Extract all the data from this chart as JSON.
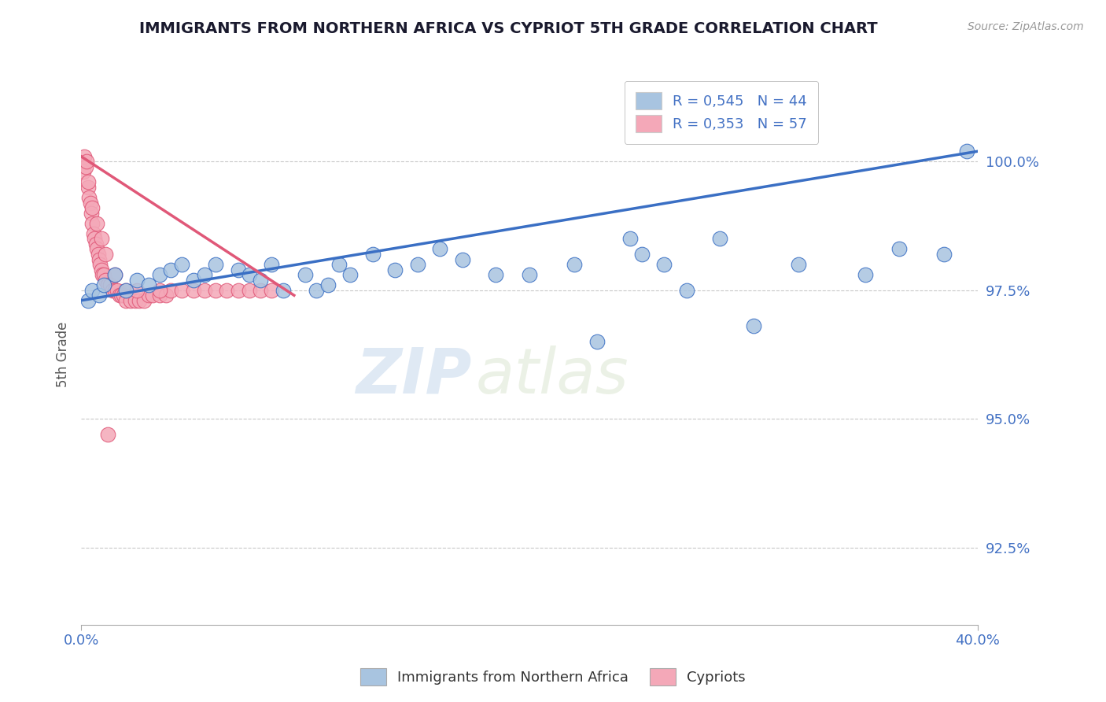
{
  "title": "IMMIGRANTS FROM NORTHERN AFRICA VS CYPRIOT 5TH GRADE CORRELATION CHART",
  "source_text": "Source: ZipAtlas.com",
  "ylabel": "5th Grade",
  "xlim": [
    0.0,
    40.0
  ],
  "ylim": [
    91.0,
    101.5
  ],
  "yticks": [
    92.5,
    95.0,
    97.5,
    100.0
  ],
  "ytick_labels": [
    "92.5%",
    "95.0%",
    "97.5%",
    "100.0%"
  ],
  "xtick_labels": [
    "0.0%",
    "40.0%"
  ],
  "legend_labels": [
    "Immigrants from Northern Africa",
    "Cypriots"
  ],
  "legend_r_blue": "R = 0,545",
  "legend_n_blue": "N = 44",
  "legend_r_pink": "R = 0,353",
  "legend_n_pink": "N = 57",
  "blue_color": "#a8c4e0",
  "pink_color": "#f4a8b8",
  "trend_blue": "#3a6fc4",
  "trend_pink": "#e05878",
  "watermark_zip": "ZIP",
  "watermark_atlas": "atlas",
  "blue_scatter_x": [
    0.3,
    0.5,
    0.8,
    1.0,
    1.5,
    2.0,
    2.5,
    3.0,
    3.5,
    4.0,
    4.5,
    5.0,
    5.5,
    6.0,
    7.0,
    7.5,
    8.0,
    8.5,
    9.0,
    10.0,
    10.5,
    11.0,
    11.5,
    12.0,
    13.0,
    14.0,
    15.0,
    16.0,
    17.0,
    18.5,
    20.0,
    22.0,
    23.0,
    24.5,
    25.0,
    26.0,
    27.0,
    28.5,
    30.0,
    32.0,
    35.0,
    36.5,
    38.5,
    39.5
  ],
  "blue_scatter_y": [
    97.3,
    97.5,
    97.4,
    97.6,
    97.8,
    97.5,
    97.7,
    97.6,
    97.8,
    97.9,
    98.0,
    97.7,
    97.8,
    98.0,
    97.9,
    97.8,
    97.7,
    98.0,
    97.5,
    97.8,
    97.5,
    97.6,
    98.0,
    97.8,
    98.2,
    97.9,
    98.0,
    98.3,
    98.1,
    97.8,
    97.8,
    98.0,
    96.5,
    98.5,
    98.2,
    98.0,
    97.5,
    98.5,
    96.8,
    98.0,
    97.8,
    98.3,
    98.2,
    100.2
  ],
  "pink_scatter_x": [
    0.1,
    0.15,
    0.2,
    0.25,
    0.3,
    0.35,
    0.4,
    0.45,
    0.5,
    0.55,
    0.6,
    0.65,
    0.7,
    0.75,
    0.8,
    0.85,
    0.9,
    0.95,
    1.0,
    1.1,
    1.2,
    1.3,
    1.4,
    1.5,
    1.6,
    1.7,
    1.8,
    1.9,
    2.0,
    2.2,
    2.4,
    2.6,
    2.8,
    3.0,
    3.2,
    3.5,
    3.8,
    4.0,
    4.5,
    5.0,
    5.5,
    6.0,
    6.5,
    7.0,
    7.5,
    8.0,
    8.5,
    0.3,
    0.5,
    0.7,
    0.9,
    1.1,
    1.5,
    2.0,
    2.5,
    3.5,
    1.2
  ],
  "pink_scatter_y": [
    99.8,
    100.1,
    99.9,
    100.0,
    99.5,
    99.3,
    99.2,
    99.0,
    98.8,
    98.6,
    98.5,
    98.4,
    98.3,
    98.2,
    98.1,
    98.0,
    97.9,
    97.8,
    97.8,
    97.7,
    97.6,
    97.6,
    97.5,
    97.5,
    97.5,
    97.4,
    97.4,
    97.4,
    97.3,
    97.3,
    97.3,
    97.3,
    97.3,
    97.4,
    97.4,
    97.4,
    97.4,
    97.5,
    97.5,
    97.5,
    97.5,
    97.5,
    97.5,
    97.5,
    97.5,
    97.5,
    97.5,
    99.6,
    99.1,
    98.8,
    98.5,
    98.2,
    97.8,
    97.5,
    97.5,
    97.5,
    94.7
  ],
  "blue_trend_x": [
    0.0,
    40.0
  ],
  "blue_trend_y": [
    97.3,
    100.2
  ],
  "pink_trend_x": [
    0.0,
    9.5
  ],
  "pink_trend_y": [
    100.1,
    97.4
  ]
}
